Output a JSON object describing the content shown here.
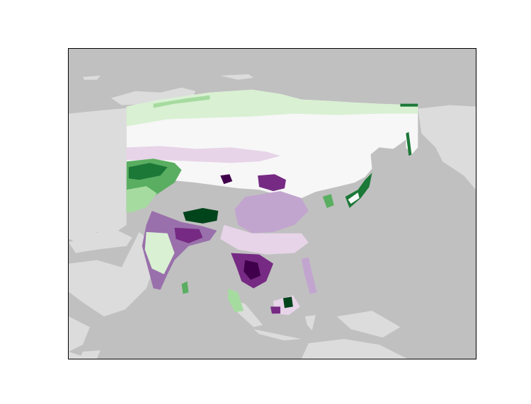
{
  "map": {
    "projection": "lambert-conformal-conic",
    "region": "Asia",
    "ocean_color": "#c0c0c0",
    "land_color": "#dcdcdc",
    "frame_color": "#000000",
    "colormap": "PRGn",
    "colormap_stops": [
      "#40004b",
      "#762a83",
      "#9970ab",
      "#c2a5cf",
      "#e7d4e8",
      "#f7f7f7",
      "#d9f0d3",
      "#a6dba0",
      "#5aae61",
      "#1b7837",
      "#00441b"
    ],
    "legend_shown": false,
    "title_shown": false
  }
}
